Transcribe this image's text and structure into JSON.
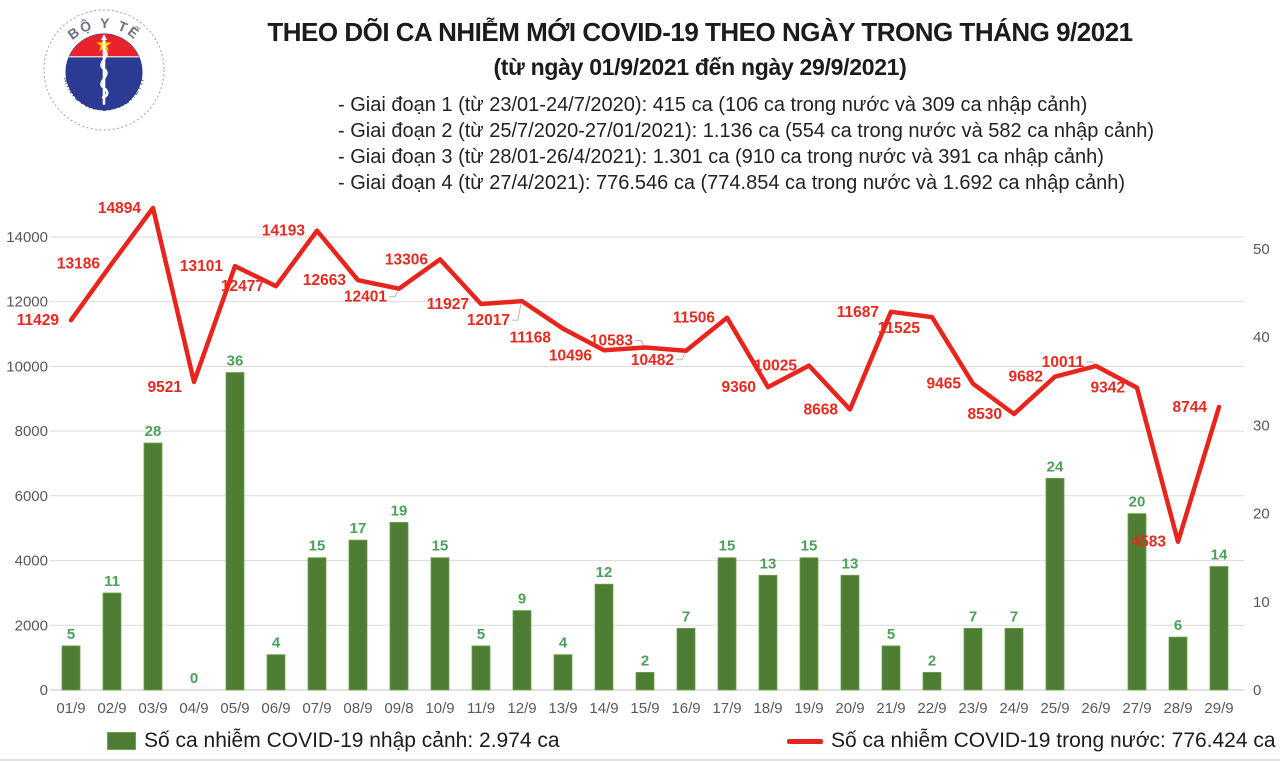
{
  "logo": {
    "top_text": "BỘ Y TẾ",
    "bottom_text": "MINISTRY OF HEALTH"
  },
  "chart_data": {
    "type": "combo",
    "title": "THEO DÕI CA NHIỄM MỚI COVID-19 THEO NGÀY TRONG THÁNG 9/2021",
    "subtitle": "(từ ngày 01/9/2021 đến ngày 29/9/2021)",
    "annotations": [
      "- Giai đoạn 1 (từ 23/01-24/7/2020): 415 ca (106 ca trong nước và 309 ca nhập cảnh)",
      "- Giai đoạn 2 (từ 25/7/2020-27/01/2021): 1.136 ca (554 ca trong nước và 582 ca nhập cảnh)",
      "- Giai đoạn 3 (từ 28/01-26/4/2021): 1.301 ca (910 ca trong nước và 391 ca nhập cảnh)",
      "- Giai đoạn 4 (từ 27/4/2021): 776.546 ca (774.854 ca trong nước và 1.692 ca nhập cảnh)"
    ],
    "categories": [
      "01/9",
      "02/9",
      "03/9",
      "04/9",
      "05/9",
      "06/9",
      "07/9",
      "08/9",
      "09/8",
      "10/9",
      "11/9",
      "12/9",
      "13/9",
      "14/9",
      "15/9",
      "16/9",
      "17/9",
      "18/9",
      "19/9",
      "20/9",
      "21/9",
      "22/9",
      "23/9",
      "24/9",
      "25/9",
      "26/9",
      "27/9",
      "28/9",
      "29/9"
    ],
    "series": [
      {
        "name": "Số ca nhiễm COVID-19 nhập cảnh",
        "type": "bar",
        "axis": "right",
        "color": "#4e7e34",
        "values": [
          5,
          11,
          28,
          0,
          36,
          4,
          15,
          17,
          19,
          15,
          5,
          9,
          4,
          12,
          2,
          7,
          15,
          13,
          15,
          13,
          5,
          2,
          7,
          7,
          24,
          null,
          20,
          6,
          14
        ]
      },
      {
        "name": "Số ca nhiễm COVID-19 trong nước",
        "type": "line",
        "axis": "left",
        "color": "#e8251d",
        "values": [
          11429,
          13186,
          14894,
          9521,
          13101,
          12477,
          14193,
          12663,
          12401,
          13306,
          11927,
          12017,
          11168,
          10496,
          10583,
          10482,
          11506,
          9360,
          10025,
          8668,
          11687,
          11525,
          9465,
          8530,
          9682,
          10011,
          9342,
          4583,
          8744
        ]
      }
    ],
    "left_axis": {
      "ticks": [
        0,
        2000,
        4000,
        6000,
        8000,
        10000,
        12000,
        14000
      ],
      "range": [
        0,
        15150
      ]
    },
    "right_axis": {
      "ticks": [
        0,
        10,
        20,
        30,
        40,
        50
      ],
      "range": [
        0,
        55.6
      ]
    },
    "grid": true,
    "legend_position": "bottom",
    "legend": [
      {
        "label": "Số ca nhiễm COVID-19 nhập cảnh: 2.974 ca",
        "color": "#4e7e34",
        "swatch": "square"
      },
      {
        "label": "Số ca nhiễm COVID-19 trong nước: 776.424 ca",
        "color": "#e8251d",
        "swatch": "line"
      }
    ]
  }
}
